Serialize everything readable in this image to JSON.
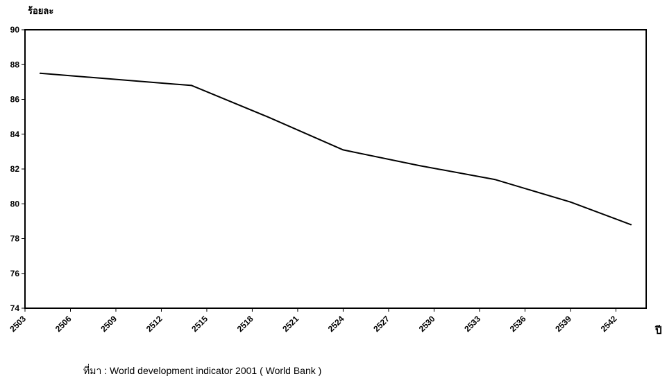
{
  "chart_data": {
    "type": "line",
    "ylabel": "ร้อยละ",
    "xlabel": "ปี",
    "x_ticks": [
      2503,
      2506,
      2509,
      2512,
      2515,
      2518,
      2521,
      2524,
      2527,
      2530,
      2533,
      2536,
      2539,
      2542
    ],
    "ylim": [
      74,
      90
    ],
    "y_ticks": [
      74,
      76,
      78,
      80,
      82,
      84,
      86,
      88,
      90
    ],
    "xlim": [
      2503,
      2544
    ],
    "grid": false,
    "series": [
      {
        "x": [
          2504,
          2514,
          2519,
          2524,
          2529,
          2534,
          2539,
          2543
        ],
        "y": [
          87.5,
          86.8,
          85.0,
          83.1,
          82.2,
          81.4,
          80.1,
          78.8
        ]
      }
    ]
  },
  "source": "ที่มา : World development indicator 2001 ( World Bank )"
}
